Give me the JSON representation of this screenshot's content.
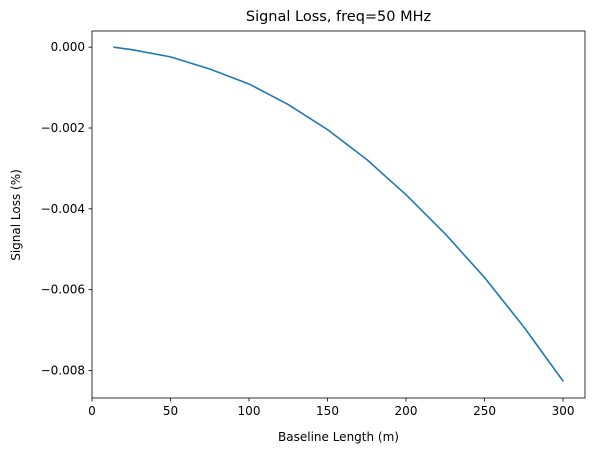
{
  "chart_data": {
    "type": "line",
    "title": "Signal Loss, freq=50 MHz",
    "xlabel": "Baseline Length (m)",
    "ylabel": "Signal Loss (%)",
    "xlim": [
      0,
      314
    ],
    "ylim": [
      -0.00868,
      0.0004
    ],
    "x_ticks": [
      0,
      50,
      100,
      150,
      200,
      250,
      300
    ],
    "x_tick_labels": [
      "0",
      "50",
      "100",
      "150",
      "200",
      "250",
      "300"
    ],
    "y_ticks": [
      0.0,
      -0.002,
      -0.004,
      -0.006,
      -0.008
    ],
    "y_tick_labels": [
      "0.000",
      "−0.002",
      "−0.004",
      "−0.006",
      "−0.008"
    ],
    "grid": false,
    "series": [
      {
        "color": "#1f77b4",
        "x": [
          14,
          25,
          50,
          75,
          100,
          125,
          150,
          175,
          200,
          225,
          250,
          275,
          300
        ],
        "y": [
          0.0,
          -6e-05,
          -0.00024,
          -0.00054,
          -0.00091,
          -0.00142,
          -0.00204,
          -0.00278,
          -0.00365,
          -0.00462,
          -0.0057,
          -0.00692,
          -0.00826
        ]
      }
    ]
  }
}
